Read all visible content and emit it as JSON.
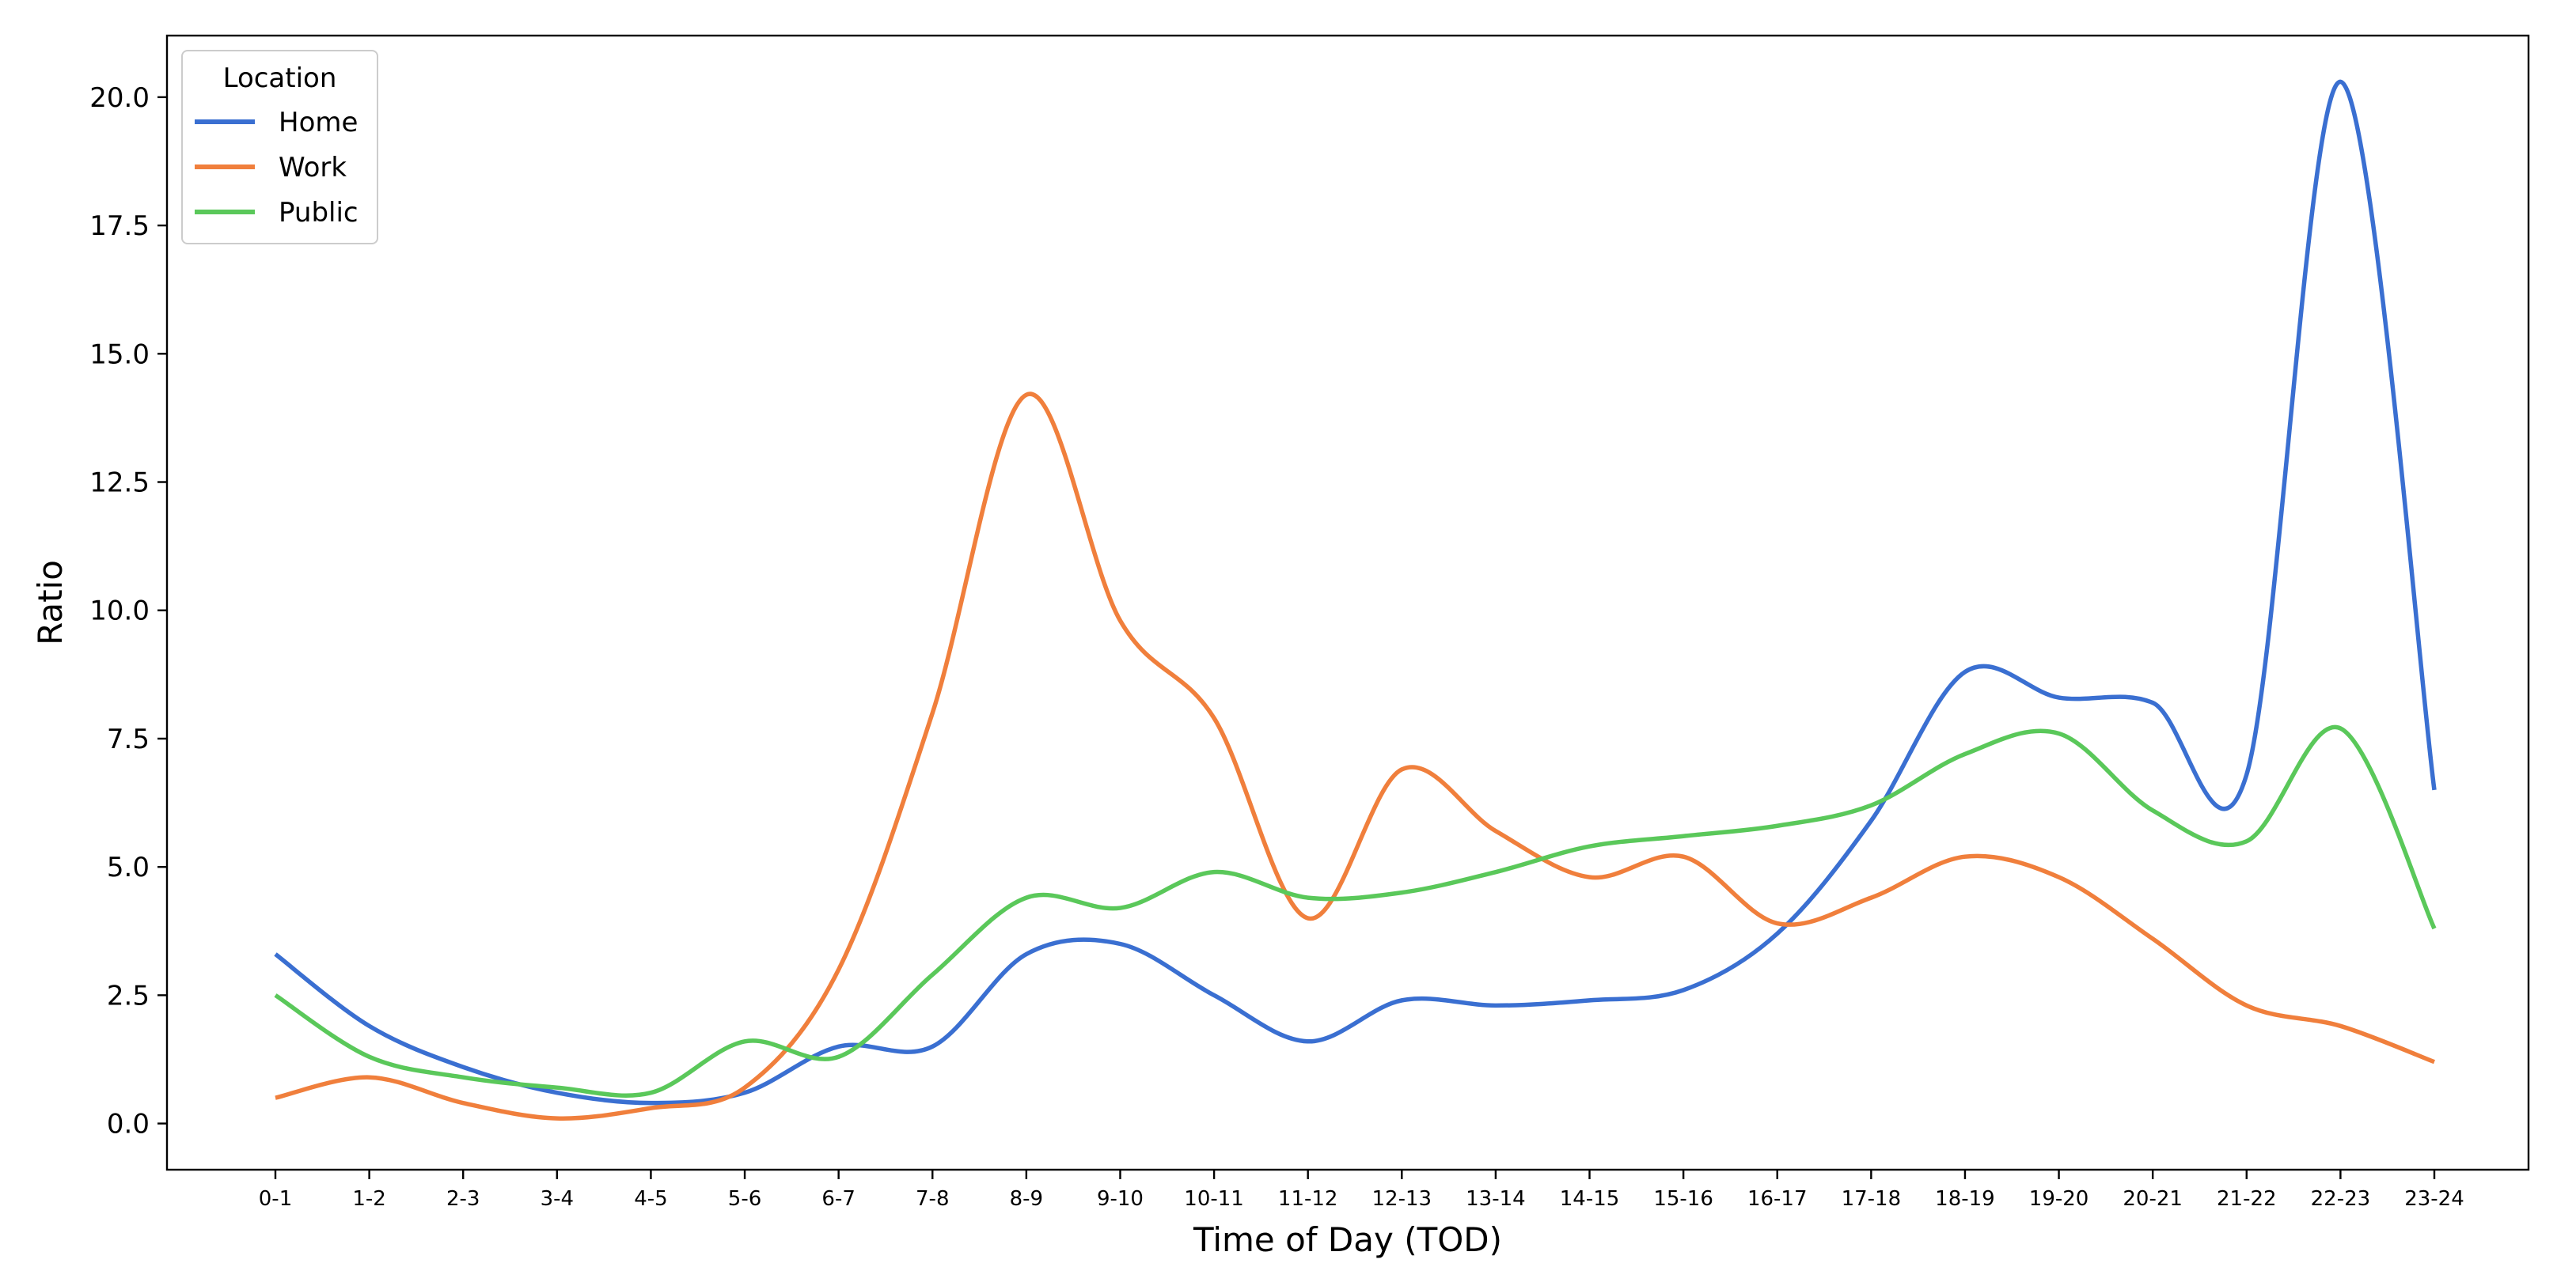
{
  "chart_data": {
    "type": "line",
    "xlabel": "Time of Day (TOD)",
    "ylabel": "Ratio",
    "categories": [
      "0-1",
      "1-2",
      "2-3",
      "3-4",
      "4-5",
      "5-6",
      "6-7",
      "7-8",
      "8-9",
      "9-10",
      "10-11",
      "11-12",
      "12-13",
      "13-14",
      "14-15",
      "15-16",
      "16-17",
      "17-18",
      "18-19",
      "19-20",
      "20-21",
      "21-22",
      "22-23",
      "23-24"
    ],
    "ylim": [
      -0.9,
      21.2
    ],
    "yticks": [
      0.0,
      2.5,
      5.0,
      7.5,
      10.0,
      12.5,
      15.0,
      17.5,
      20.0
    ],
    "ytick_labels": [
      "0.0",
      "2.5",
      "5.0",
      "7.5",
      "10.0",
      "12.5",
      "15.0",
      "17.5",
      "20.0"
    ],
    "grid": false,
    "legend": {
      "title": "Location",
      "placement": "top-left"
    },
    "series": [
      {
        "name": "Home",
        "color": "#3a6fd1",
        "values": [
          3.3,
          1.9,
          1.1,
          0.6,
          0.4,
          0.6,
          1.5,
          1.5,
          3.3,
          3.5,
          2.5,
          1.6,
          2.4,
          2.3,
          2.4,
          2.6,
          3.7,
          5.9,
          8.8,
          8.3,
          8.2,
          6.8,
          20.3,
          6.5
        ]
      },
      {
        "name": "Work",
        "color": "#f07f3c",
        "values": [
          0.5,
          0.9,
          0.4,
          0.1,
          0.3,
          0.7,
          3.0,
          8.0,
          14.2,
          9.8,
          7.9,
          4.0,
          6.9,
          5.7,
          4.8,
          5.2,
          3.9,
          4.4,
          5.2,
          4.8,
          3.6,
          2.3,
          1.9,
          1.2
        ]
      },
      {
        "name": "Public",
        "color": "#5ac85a",
        "values": [
          2.5,
          1.3,
          0.9,
          0.7,
          0.6,
          1.6,
          1.3,
          2.9,
          4.4,
          4.2,
          4.9,
          4.4,
          4.5,
          4.9,
          5.4,
          5.6,
          5.8,
          6.2,
          7.2,
          7.6,
          6.1,
          5.5,
          7.7,
          3.8
        ]
      }
    ]
  }
}
